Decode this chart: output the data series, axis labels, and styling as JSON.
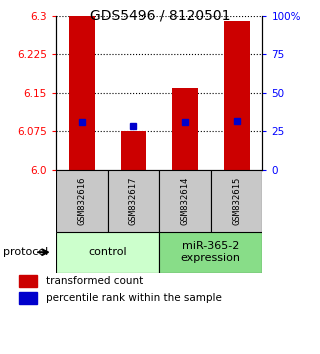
{
  "title": "GDS5496 / 8120501",
  "samples": [
    "GSM832616",
    "GSM832617",
    "GSM832614",
    "GSM832615"
  ],
  "group_labels": [
    "control",
    "miR-365-2\nexpression"
  ],
  "red_values": [
    6.3,
    6.075,
    6.16,
    6.29
  ],
  "blue_values": [
    6.093,
    6.086,
    6.093,
    6.095
  ],
  "ylim_left": [
    6.0,
    6.3
  ],
  "ylim_right": [
    0,
    100
  ],
  "left_ticks": [
    6.0,
    6.075,
    6.15,
    6.225,
    6.3
  ],
  "right_ticks": [
    0,
    25,
    50,
    75,
    100
  ],
  "bar_color": "#cc0000",
  "dot_color": "#0000cc",
  "gray_color": "#c8c8c8",
  "green_color_light": "#ccffcc",
  "green_color_dark": "#88dd88"
}
